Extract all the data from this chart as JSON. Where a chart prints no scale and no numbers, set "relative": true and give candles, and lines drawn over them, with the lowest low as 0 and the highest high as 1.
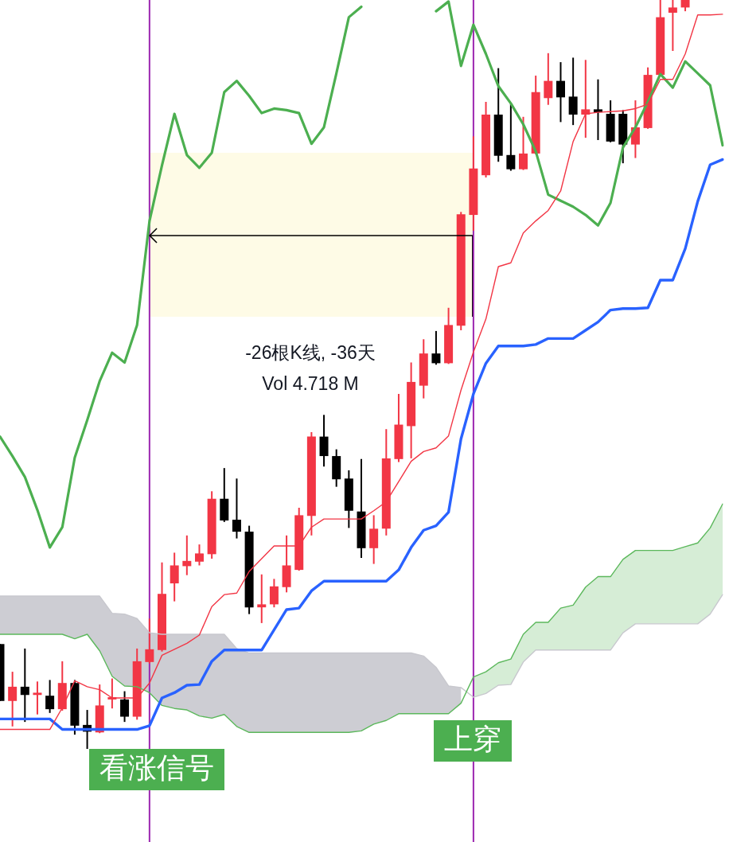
{
  "chart_data": {
    "type": "candlestick",
    "relative": true,
    "categories": [
      null,
      null,
      null,
      null,
      null,
      null,
      null,
      null,
      null,
      null,
      null,
      null,
      null,
      null,
      null,
      null,
      null,
      null,
      null,
      null,
      null,
      null,
      null,
      null,
      null,
      null,
      null,
      null,
      null,
      null,
      null,
      null,
      null,
      null,
      null,
      null,
      null,
      null,
      null,
      null,
      null,
      null,
      null,
      null,
      null,
      null,
      null,
      null,
      null,
      null,
      null,
      null,
      null,
      null,
      null,
      null,
      null,
      null,
      null
    ],
    "ohlc": [
      [
        0.14,
        0.14,
        0.064,
        0.064
      ],
      [
        0.064,
        0.103,
        0.03,
        0.083
      ],
      [
        0.083,
        0.134,
        0.036,
        0.072
      ],
      [
        0.072,
        0.09,
        0.046,
        0.075
      ],
      [
        0.071,
        0.092,
        0.048,
        0.053
      ],
      [
        0.053,
        0.117,
        0.051,
        0.088
      ],
      [
        0.088,
        0.092,
        0.019,
        0.031
      ],
      [
        0.032,
        0.052,
        0,
        0.023
      ],
      [
        0.022,
        0.086,
        0.021,
        0.058
      ],
      [
        0.066,
        0.094,
        0.054,
        0.069
      ],
      [
        0.066,
        0.077,
        0.036,
        0.043
      ],
      [
        0.043,
        0.134,
        0.039,
        0.117
      ],
      [
        0.116,
        0.174,
        0.114,
        0.133
      ],
      [
        0.132,
        0.249,
        0.13,
        0.207
      ],
      [
        0.221,
        0.262,
        0.197,
        0.245
      ],
      [
        0.244,
        0.285,
        0.232,
        0.251
      ],
      [
        0.25,
        0.273,
        0.245,
        0.261
      ],
      [
        0.26,
        0.344,
        0.254,
        0.334
      ],
      [
        0.334,
        0.375,
        0.303,
        0.305
      ],
      [
        0.306,
        0.361,
        0.281,
        0.29
      ],
      [
        0.29,
        0.298,
        0.18,
        0.189
      ],
      [
        0.189,
        0.233,
        0.168,
        0.193
      ],
      [
        0.193,
        0.227,
        0.189,
        0.217
      ],
      [
        0.216,
        0.285,
        0.209,
        0.245
      ],
      [
        0.239,
        0.322,
        0.238,
        0.312
      ],
      [
        0.311,
        0.423,
        0.285,
        0.417
      ],
      [
        0.417,
        0.446,
        0.377,
        0.391
      ],
      [
        0.391,
        0.4,
        0.35,
        0.36
      ],
      [
        0.361,
        0.372,
        0.295,
        0.318
      ],
      [
        0.317,
        0.387,
        0.255,
        0.268
      ],
      [
        0.268,
        0.312,
        0.247,
        0.294
      ],
      [
        0.294,
        0.427,
        0.285,
        0.388
      ],
      [
        0.387,
        0.474,
        0.383,
        0.433
      ],
      [
        0.431,
        0.516,
        0.388,
        0.49
      ],
      [
        0.485,
        0.547,
        0.468,
        0.528
      ],
      [
        0.528,
        0.558,
        0.513,
        0.515
      ],
      [
        0.515,
        0.589,
        0.514,
        0.566
      ],
      [
        0.565,
        0.717,
        0.559,
        0.714
      ],
      [
        0.713,
        0.818,
        0.692,
        0.775
      ],
      [
        0.766,
        0.864,
        0.763,
        0.847
      ],
      [
        0.847,
        0.909,
        0.784,
        0.792
      ],
      [
        0.793,
        0.861,
        0.772,
        0.774
      ],
      [
        0.774,
        0.844,
        0.773,
        0.795
      ],
      [
        0.795,
        0.899,
        0.794,
        0.877
      ],
      [
        0.869,
        0.929,
        0.86,
        0.892
      ],
      [
        0.892,
        0.917,
        0.837,
        0.87
      ],
      [
        0.871,
        0.923,
        0.833,
        0.847
      ],
      [
        0.847,
        0.92,
        0.816,
        0.854
      ],
      [
        0.854,
        0.894,
        0.813,
        0.85
      ],
      [
        0.848,
        0.866,
        0.81,
        0.811
      ],
      [
        0.848,
        0.853,
        0.782,
        0.807
      ],
      [
        0.807,
        0.866,
        0.789,
        0.83
      ],
      [
        0.829,
        0.91,
        0.828,
        0.9
      ],
      [
        0.9,
        1,
        0.899,
        0.977
      ],
      [
        0.983,
        1,
        0.932,
        0.99
      ],
      [
        0.99,
        1,
        0.985,
        1
      ],
      null,
      null,
      null
    ],
    "colors": [
      "#000000",
      "#f23645",
      "#000000",
      "#f23645",
      "#000000",
      "#f23645",
      "#000000",
      "#000000",
      "#f23645",
      "#f23645",
      "#000000",
      "#f23645",
      "#f23645",
      "#f23645",
      "#f23645",
      "#f23645",
      "#f23645",
      "#f23645",
      "#000000",
      "#000000",
      "#000000",
      "#f23645",
      "#f23645",
      "#f23645",
      "#f23645",
      "#f23645",
      "#000000",
      "#000000",
      "#000000",
      "#000000",
      "#f23645",
      "#f23645",
      "#f23645",
      "#f23645",
      "#f23645",
      "#000000",
      "#f23645",
      "#f23645",
      "#f23645",
      "#f23645",
      "#000000",
      "#000000",
      "#f23645",
      "#f23645",
      "#f23645",
      "#000000",
      "#000000",
      "#f23645",
      "#000000",
      "#000000",
      "#000000",
      "#f23645",
      "#f23645",
      "#f23645",
      "#f23645",
      "#f23645",
      null,
      null,
      null
    ],
    "series": [
      {
        "type": "line",
        "color": "#f23645",
        "values": [
          0.026,
          0.026,
          0.026,
          0.026,
          0.026,
          0.055,
          0.091,
          0.083,
          0.079,
          0.068,
          0.068,
          0.068,
          0.088,
          0.125,
          0.133,
          0.141,
          0.152,
          0.19,
          0.206,
          0.208,
          0.237,
          0.254,
          0.271,
          0.271,
          0.271,
          0.296,
          0.307,
          0.307,
          0.307,
          0.307,
          0.318,
          0.33,
          0.357,
          0.384,
          0.397,
          0.402,
          0.418,
          0.479,
          0.53,
          0.574,
          0.644,
          0.649,
          0.689,
          0.705,
          0.719,
          0.745,
          0.811,
          0.848,
          0.85,
          0.851,
          0.852,
          0.855,
          0.861,
          0.894,
          0.894,
          0.928,
          0.98,
          0.98,
          0.981
        ]
      },
      {
        "type": "line",
        "color": "#2962ff",
        "values": [
          0.04,
          0.04,
          0.04,
          0.04,
          0.04,
          0.026,
          0.026,
          0.026,
          0.026,
          0.026,
          0.026,
          0.026,
          0.031,
          0.068,
          0.075,
          0.085,
          0.086,
          0.117,
          0.132,
          0.132,
          0.132,
          0.132,
          0.159,
          0.186,
          0.188,
          0.211,
          0.224,
          0.224,
          0.224,
          0.224,
          0.224,
          0.224,
          0.239,
          0.269,
          0.292,
          0.298,
          0.316,
          0.414,
          0.474,
          0.515,
          0.538,
          0.538,
          0.538,
          0.54,
          0.548,
          0.548,
          0.548,
          0.559,
          0.57,
          0.586,
          0.588,
          0.588,
          0.589,
          0.626,
          0.626,
          0.668,
          0.731,
          0.78,
          0.787
        ]
      },
      {
        "type": "line",
        "color": "#4caf50",
        "values": [
          0.417,
          0.391,
          0.363,
          0.319,
          0.269,
          0.296,
          0.389,
          0.439,
          0.491,
          0.529,
          0.516,
          0.566,
          0.705,
          0.779,
          0.848,
          0.793,
          0.776,
          0.796,
          0.877,
          0.892,
          0.872,
          0.849,
          0.855,
          0.853,
          0.849,
          0.808,
          0.83,
          0.902,
          0.977,
          0.991,
          null,
          null,
          null,
          null,
          null,
          0.985,
          0.998,
          0.912,
          0.967,
          0.928,
          0.885,
          0.862,
          0.834,
          0.798,
          0.74,
          0.732,
          0.724,
          0.713,
          0.699,
          0.729,
          0.803,
          0.83,
          0.864,
          0.901,
          0.883,
          0.918,
          0.902,
          0.886,
          0.806
        ]
      },
      {
        "type": "line",
        "color": "#5cb85c",
        "values": [
          0.153,
          0.153,
          0.153,
          0.153,
          0.153,
          0.153,
          0.147,
          0.153,
          0.131,
          0.097,
          0.084,
          0.083,
          0.075,
          0.058,
          0.054,
          0.052,
          0.044,
          0.041,
          0.046,
          0.03,
          0.022,
          0.022,
          0.022,
          0.022,
          0.022,
          0.022,
          0.022,
          0.022,
          0.022,
          0.024,
          0.033,
          0.038,
          0.047,
          0.047,
          0.047,
          0.047,
          0.047,
          0.061,
          0.096,
          0.103,
          0.115,
          0.12,
          0.153,
          0.169,
          0.169,
          0.188,
          0.192,
          0.216,
          0.23,
          0.23,
          0.253,
          0.265,
          0.265,
          0.265,
          0.265,
          0.27,
          0.275,
          0.295,
          0.327
        ],
        "upper": [
          null,
          null,
          null,
          null,
          null,
          null,
          null,
          null,
          null,
          null,
          null,
          null,
          null,
          null,
          null,
          null,
          null,
          null,
          null,
          null,
          null,
          null,
          null,
          null,
          null,
          null,
          null,
          null,
          null,
          null,
          null,
          null,
          null,
          null,
          null,
          null,
          null,
          null,
          0.096,
          0.103,
          0.115,
          0.12,
          0.153,
          0.169,
          0.169,
          0.188,
          0.192,
          0.216,
          0.23,
          0.23,
          0.253,
          0.265,
          0.265,
          0.265,
          0.265,
          0.27,
          0.275,
          0.295,
          0.327
        ],
        "lower": [
          null,
          null,
          null,
          null,
          null,
          null,
          null,
          null,
          null,
          null,
          null,
          null,
          null,
          null,
          null,
          null,
          null,
          null,
          null,
          null,
          null,
          null,
          null,
          null,
          null,
          null,
          null,
          null,
          null,
          null,
          null,
          null,
          null,
          null,
          null,
          null,
          null,
          null,
          0.069,
          0.074,
          0.085,
          0.086,
          0.116,
          0.132,
          0.132,
          0.132,
          0.132,
          0.132,
          0.132,
          0.132,
          0.155,
          0.167,
          0.167,
          0.167,
          0.167,
          0.167,
          0.167,
          0.18,
          0.206
        ]
      },
      {
        "type": "line",
        "color": "#c8c8ce",
        "values": [
          0.204,
          0.204,
          0.204,
          0.204,
          0.204,
          0.204,
          0.204,
          0.204,
          0.204,
          0.181,
          0.18,
          0.174,
          0.155,
          0.153,
          0.153,
          0.153,
          0.153,
          0.153,
          0.153,
          0.134,
          0.128,
          0.128,
          0.128,
          0.128,
          0.128,
          0.128,
          0.128,
          0.128,
          0.128,
          0.128,
          0.128,
          0.128,
          0.128,
          0.128,
          0.124,
          0.109,
          0.084,
          0.082,
          0.069,
          0.074,
          0.085,
          0.086,
          0.116,
          0.132,
          0.132,
          0.132,
          0.132,
          0.132,
          0.132,
          0.132,
          0.155,
          0.167,
          0.167,
          0.167,
          0.167,
          0.167,
          0.167,
          0.18,
          0.206
        ],
        "upper": [
          0.204,
          0.204,
          0.204,
          0.204,
          0.204,
          0.204,
          0.204,
          0.204,
          0.204,
          0.181,
          0.18,
          0.174,
          0.155,
          0.153,
          0.153,
          0.153,
          0.153,
          0.153,
          0.153,
          0.134,
          0.128,
          0.128,
          0.128,
          0.128,
          0.128,
          0.128,
          0.128,
          0.128,
          0.128,
          0.128,
          0.128,
          0.128,
          0.128,
          0.128,
          0.124,
          0.109,
          0.084,
          0.082,
          null,
          null,
          null,
          null,
          null,
          null,
          null,
          null,
          null,
          null,
          null,
          null,
          null,
          null,
          null,
          null,
          null,
          null,
          null,
          null,
          null
        ],
        "lower": [
          0.153,
          0.153,
          0.153,
          0.153,
          0.153,
          0.153,
          0.147,
          0.153,
          0.131,
          0.097,
          0.084,
          0.083,
          0.075,
          0.058,
          0.054,
          0.052,
          0.044,
          0.041,
          0.046,
          0.03,
          0.022,
          0.022,
          0.022,
          0.022,
          0.022,
          0.022,
          0.022,
          0.022,
          0.022,
          0.024,
          0.033,
          0.038,
          0.047,
          0.047,
          0.047,
          0.047,
          0.047,
          0.061,
          null,
          null,
          null,
          null,
          null,
          null,
          null,
          null,
          null,
          null,
          null,
          null,
          null,
          null,
          null,
          null,
          null,
          null,
          null,
          null,
          null
        ]
      }
    ],
    "annotations": [
      "-26根K线, -36天",
      "Vol 4.718 M",
      "上穿",
      "看涨信号"
    ]
  }
}
